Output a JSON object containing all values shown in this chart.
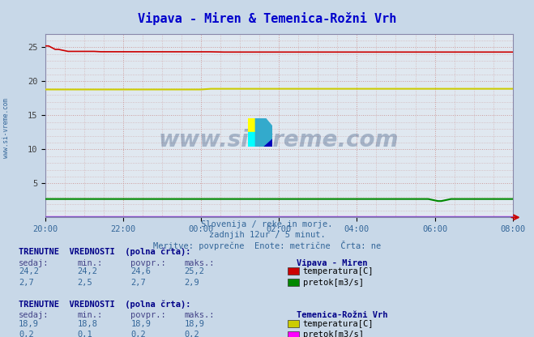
{
  "title": "Vipava - Miren & Temenica-Rožni Vrh",
  "title_color": "#0000cc",
  "bg_color": "#c8d8e8",
  "plot_bg_color": "#e0e8f0",
  "border_color": "#8888aa",
  "watermark_text": "www.si-vreme.com",
  "watermark_color": "#1a3a6a",
  "watermark_alpha": 0.3,
  "subtitle_lines": [
    "Slovenija / reke in morje.",
    "zadnjih 12ur / 5 minut.",
    "Meritve: povprečne  Enote: metrične  Črta: ne"
  ],
  "subtitle_color": "#336699",
  "left_label_color": "#336699",
  "x_labels": [
    "20:00",
    "22:00",
    "00:00",
    "02:00",
    "04:00",
    "06:00",
    "08:00"
  ],
  "x_ticks": [
    0,
    24,
    48,
    72,
    96,
    120,
    144
  ],
  "ylim": [
    0,
    27
  ],
  "yticks": [
    5,
    10,
    15,
    20,
    25
  ],
  "series_colors": [
    "#cc0000",
    "#008800",
    "#cccc00",
    "#ff00ff"
  ],
  "table1_title": "TRENUTNE  VREDNOSTI  (polna črta):",
  "table1_station": "Vipava - Miren",
  "table1_headers": [
    "sedaj:",
    "min.:",
    "povpr.:",
    "maks.:"
  ],
  "table1_rows": [
    [
      "24,2",
      "24,2",
      "24,6",
      "25,2",
      "#cc0000",
      "temperatura[C]"
    ],
    [
      "2,7",
      "2,5",
      "2,7",
      "2,9",
      "#008800",
      "pretok[m3/s]"
    ]
  ],
  "table2_title": "TRENUTNE  VREDNOSTI  (polna črta):",
  "table2_station": "Temenica-Rožni Vrh",
  "table2_headers": [
    "sedaj:",
    "min.:",
    "povpr.:",
    "maks.:"
  ],
  "table2_rows": [
    [
      "18,9",
      "18,8",
      "18,9",
      "18,9",
      "#cccc00",
      "temperatura[C]"
    ],
    [
      "0,2",
      "0,1",
      "0,2",
      "0,2",
      "#ff00ff",
      "pretok[m3/s]"
    ]
  ]
}
